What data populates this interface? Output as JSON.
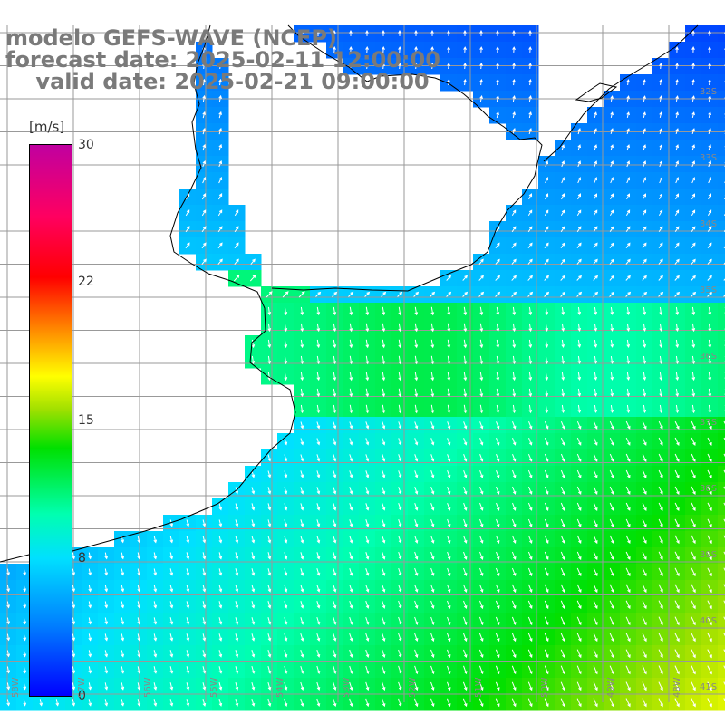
{
  "title": {
    "line1": "modelo GEFS-WAVE (NCEP)",
    "line2": "forecast date: 2025-02-11 12:00:00",
    "line3": "    valid date: 2025-02-21 09:00:00"
  },
  "colorbar": {
    "unit": "[m/s]",
    "ticks": [
      "30",
      "22",
      "15",
      "8",
      "0"
    ],
    "min": 0,
    "max": 30
  },
  "axes": {
    "lat_labels": [
      "32S",
      "33S",
      "34S",
      "35S",
      "36S",
      "37S",
      "38S",
      "39S",
      "40S",
      "41S"
    ],
    "lon_labels": [
      "58W",
      "57W",
      "56W",
      "55W",
      "54W",
      "53W",
      "52W",
      "51W",
      "50W",
      "49W",
      "48W"
    ]
  },
  "colors": {
    "land": "#ffffff",
    "grid": "#999999",
    "coastline": "#000000",
    "arrow": "#ffffff",
    "title_text": "#7a7a7a"
  }
}
